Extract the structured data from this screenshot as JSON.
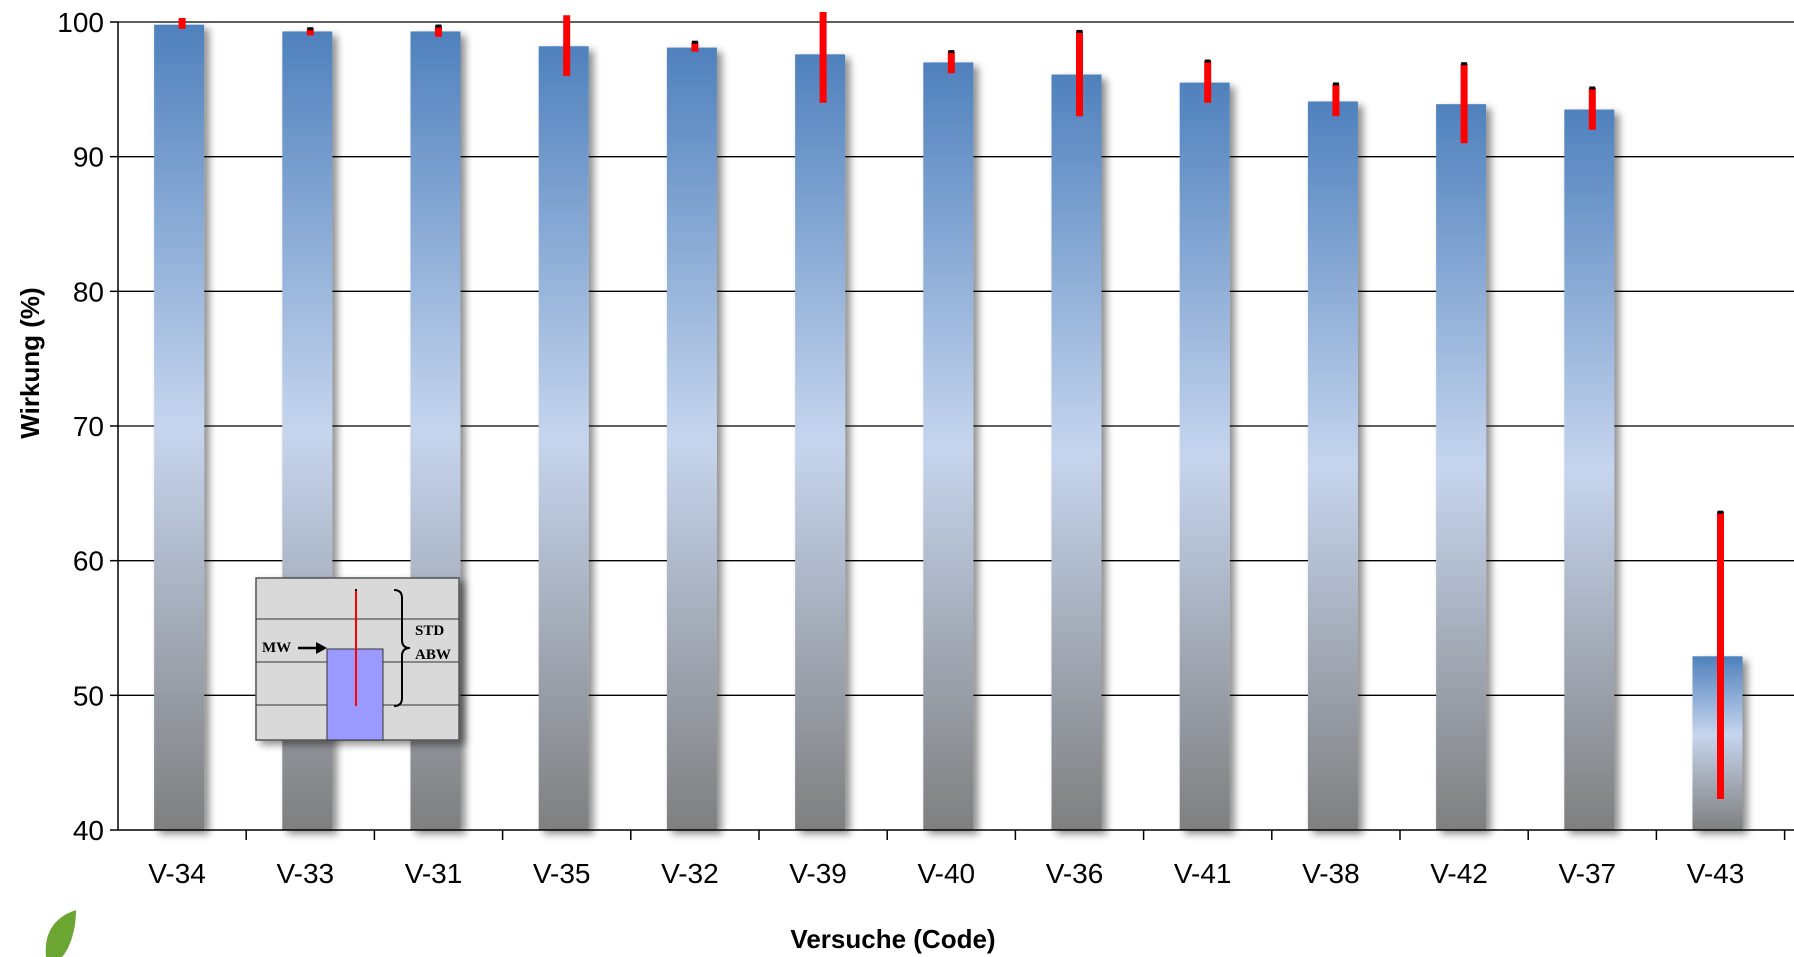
{
  "chart_data": {
    "type": "bar",
    "xlabel": "Versuche (Code)",
    "ylabel": "Wirkung (%)",
    "ylim": [
      40,
      100
    ],
    "yticks": [
      40,
      50,
      60,
      70,
      80,
      90,
      100
    ],
    "categories": [
      "V-34",
      "V-33",
      "V-31",
      "V-35",
      "V-32",
      "V-39",
      "V-40",
      "V-36",
      "V-41",
      "V-38",
      "V-42",
      "V-37",
      "V-43"
    ],
    "values": [
      99.8,
      99.3,
      99.3,
      98.2,
      98.1,
      97.6,
      97.0,
      96.1,
      95.5,
      94.1,
      93.9,
      93.5,
      52.9
    ],
    "error_high": [
      100.3,
      99.5,
      99.7,
      100.5,
      98.5,
      100.8,
      97.8,
      99.3,
      97.1,
      95.4,
      96.9,
      95.1,
      63.6
    ],
    "error_low": [
      99.5,
      99.0,
      98.9,
      96.0,
      97.8,
      94.0,
      96.2,
      93.0,
      94.0,
      93.0,
      91.0,
      92.0,
      42.3
    ],
    "grid": true,
    "colors": {
      "bar_top": "#4f81bd",
      "bar_mid": "#c6d5ee",
      "bar_bottom": "#7f7f7f",
      "error": "#ff0000",
      "grid": "#000000"
    },
    "legend": {
      "mean_label": "MW",
      "std_label": "STD",
      "dev_label": "ABW",
      "placement": "bottom-left"
    }
  }
}
